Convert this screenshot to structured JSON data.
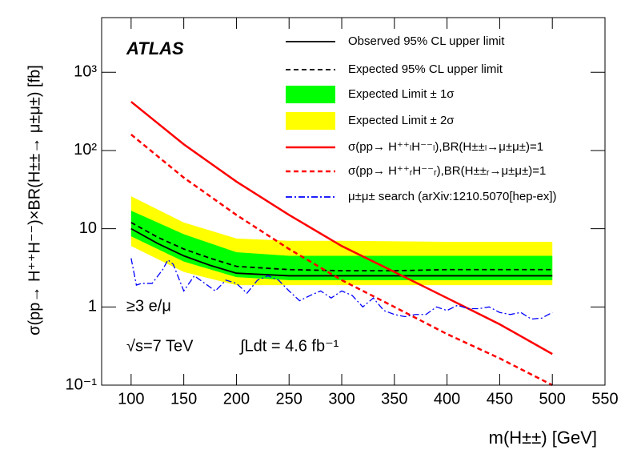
{
  "chart_data": {
    "type": "line",
    "title": "ATLAS",
    "x_label": "m(H±±) [GeV]",
    "y_label": "σ(pp→ H⁺⁺H⁻⁻)×BR(H±±→ μ±μ±) [fb]",
    "annotations": [
      "≥3 e/μ",
      "√s=7 TeV",
      "∫Ldt = 4.6 fb⁻¹"
    ],
    "log_y": true,
    "xlim": [
      72,
      550
    ],
    "ylim": [
      0.1,
      5000
    ],
    "xticks": [
      100,
      150,
      200,
      250,
      300,
      350,
      400,
      450,
      500,
      550
    ],
    "yticks": [
      {
        "value": 0.1,
        "label": "10⁻¹"
      },
      1,
      10,
      {
        "value": 100,
        "label": "10²"
      },
      {
        "value": 1000,
        "label": "10³"
      }
    ],
    "series": [
      {
        "name": "Observed 95% CL upper limit",
        "color": "#000000",
        "style": "solid",
        "x": [
          100,
          125,
          150,
          175,
          200,
          250,
          300,
          350,
          400,
          450,
          500
        ],
        "values": [
          10,
          6.5,
          4.5,
          3.4,
          2.7,
          2.5,
          2.5,
          2.5,
          2.5,
          2.5,
          2.5
        ]
      },
      {
        "name": "Expected 95% CL upper limit",
        "color": "#000000",
        "style": "dashed",
        "x": [
          100,
          125,
          150,
          175,
          200,
          250,
          300,
          350,
          400,
          450,
          500
        ],
        "values": [
          12,
          7.8,
          5.5,
          4.2,
          3.3,
          3.0,
          2.9,
          2.9,
          3.0,
          3.0,
          3.0
        ]
      },
      {
        "name": "Expected Limit ± 1σ",
        "color": "#00ff00",
        "style": "band",
        "x": [
          100,
          150,
          200,
          250,
          300,
          400,
          500
        ],
        "lower": [
          8,
          3.8,
          2.4,
          2.2,
          2.2,
          2.2,
          2.2
        ],
        "upper": [
          17,
          8.5,
          5,
          4.5,
          4.5,
          4.5,
          4.5
        ]
      },
      {
        "name": "Expected Limit ± 2σ",
        "color": "#ffff00",
        "style": "band",
        "x": [
          100,
          150,
          200,
          250,
          300,
          400,
          500
        ],
        "lower": [
          6,
          2.8,
          1.9,
          1.9,
          1.9,
          1.9,
          1.9
        ],
        "upper": [
          26,
          12,
          7.5,
          7,
          7,
          6.8,
          6.8
        ]
      },
      {
        "name": "σ(pp→ H⁺⁺ₗH⁻⁻ₗ),BR(H±±ₗ→μ±μ±)=1",
        "color": "#ff0000",
        "style": "solid",
        "x": [
          100,
          150,
          200,
          250,
          300,
          350,
          400,
          450,
          500
        ],
        "values": [
          420,
          120,
          40,
          15,
          6,
          2.8,
          1.3,
          0.6,
          0.25
        ]
      },
      {
        "name": "σ(pp→ H⁺⁺ᵣH⁻⁻ᵣ),BR(H±±ᵣ→μ±μ±)=1",
        "color": "#ff0000",
        "style": "dashed",
        "x": [
          100,
          150,
          200,
          250,
          300,
          350,
          400,
          450,
          500
        ],
        "values": [
          160,
          45,
          15,
          5.5,
          2.2,
          1.0,
          0.45,
          0.22,
          0.1
        ]
      },
      {
        "name": "μ±μ± search (arXiv:1210.5070[hep-ex])",
        "color": "#0000ff",
        "style": "dashdot",
        "x": [
          100,
          105,
          110,
          120,
          130,
          135,
          140,
          150,
          160,
          170,
          180,
          190,
          200,
          210,
          220,
          230,
          240,
          250,
          260,
          270,
          280,
          290,
          300,
          310,
          320,
          330,
          340,
          350,
          360,
          370,
          380,
          390,
          400,
          410,
          420,
          430,
          440,
          450,
          460,
          470,
          480,
          490,
          500
        ],
        "values": [
          4.2,
          1.9,
          2.0,
          2.0,
          3.0,
          4.0,
          3.5,
          1.6,
          2.5,
          2.0,
          1.6,
          2.2,
          2.0,
          1.5,
          2.2,
          2.5,
          2.2,
          1.6,
          1.2,
          1.4,
          1.6,
          1.3,
          1.6,
          1.4,
          1.0,
          1.3,
          0.9,
          0.8,
          0.75,
          0.8,
          0.8,
          1.0,
          0.9,
          1.05,
          0.95,
          0.95,
          1.0,
          0.85,
          0.8,
          0.85,
          0.7,
          0.72,
          0.85
        ]
      }
    ]
  }
}
